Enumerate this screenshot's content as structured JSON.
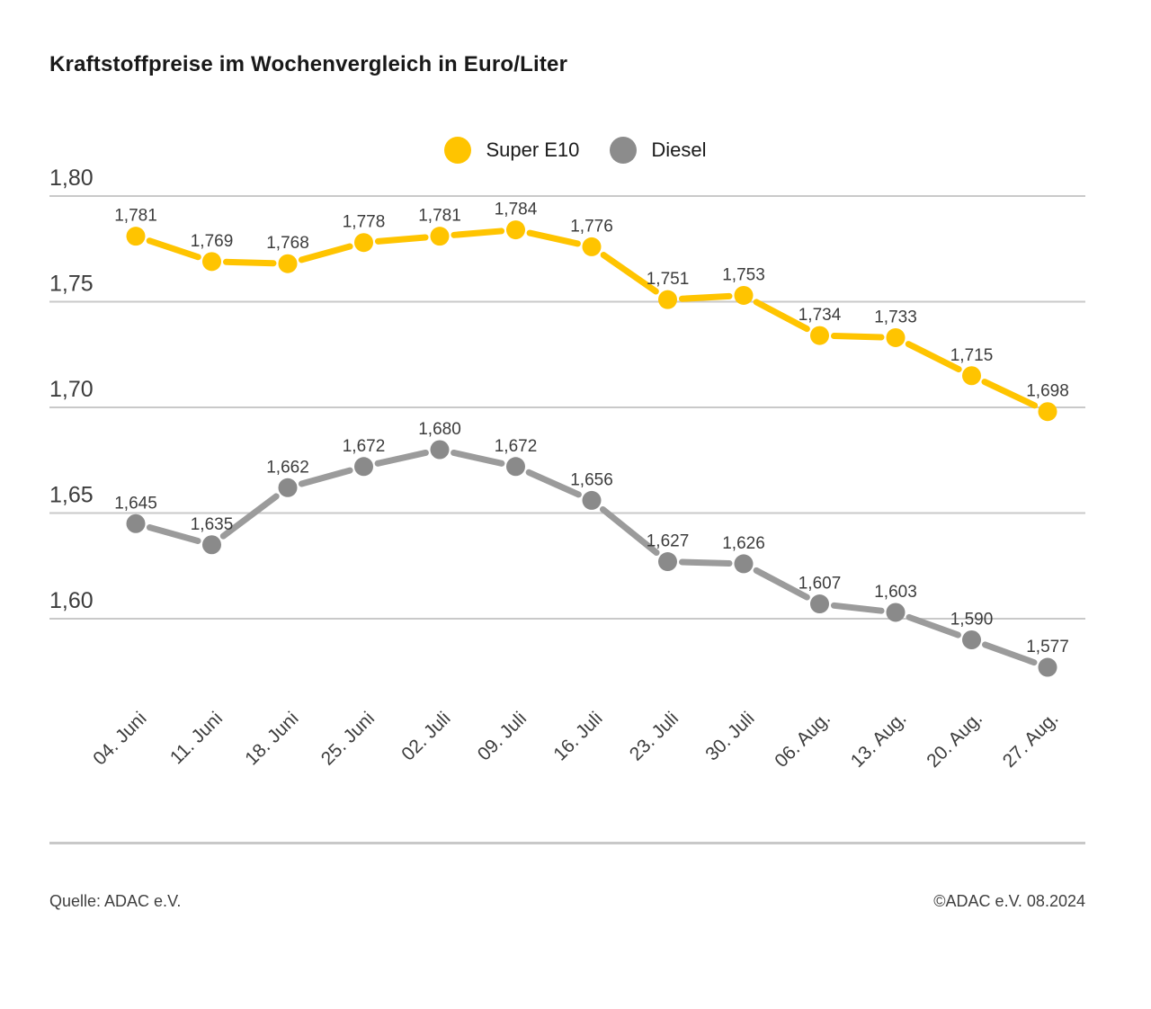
{
  "title": "Kraftstoffpreise im Wochenvergleich in Euro/Liter",
  "legend": {
    "items": [
      {
        "id": "super-e10",
        "label": "Super E10",
        "color": "#FFC400"
      },
      {
        "id": "diesel",
        "label": "Diesel",
        "color": "#8C8C8C"
      }
    ]
  },
  "chart_data": {
    "type": "line",
    "title": "Kraftstoffpreise im Wochenvergleich in Euro/Liter",
    "xlabel": "",
    "ylabel": "Euro/Liter",
    "categories": [
      "04. Juni",
      "11. Juni",
      "18. Juni",
      "25. Juni",
      "02. Juli",
      "09. Juli",
      "16. Juli",
      "23. Juli",
      "30. Juli",
      "06. Aug.",
      "13. Aug.",
      "20. Aug.",
      "27. Aug."
    ],
    "series": [
      {
        "name": "Super E10",
        "line_color": "#FFC400",
        "dot_color": "#FFC400",
        "values": [
          1.781,
          1.769,
          1.768,
          1.778,
          1.781,
          1.784,
          1.776,
          1.751,
          1.753,
          1.734,
          1.733,
          1.715,
          1.698
        ]
      },
      {
        "name": "Diesel",
        "line_color": "#9B9B9B",
        "dot_color": "#8A8A8A",
        "values": [
          1.645,
          1.635,
          1.662,
          1.672,
          1.68,
          1.672,
          1.656,
          1.627,
          1.626,
          1.607,
          1.603,
          1.59,
          1.577
        ]
      }
    ],
    "yticks": [
      1.8,
      1.75,
      1.7,
      1.65,
      1.6
    ],
    "ylim": [
      1.6,
      1.8
    ],
    "grid": true,
    "legend_position": "top",
    "value_labels": true,
    "decimal_comma": true,
    "x_label_rotation": -45,
    "grid_color": "#c9c9c9",
    "text_color": "#3c3c3c"
  },
  "footer": {
    "source": "Quelle: ADAC e.V.",
    "copyright": "©ADAC e.V. 08.2024"
  }
}
